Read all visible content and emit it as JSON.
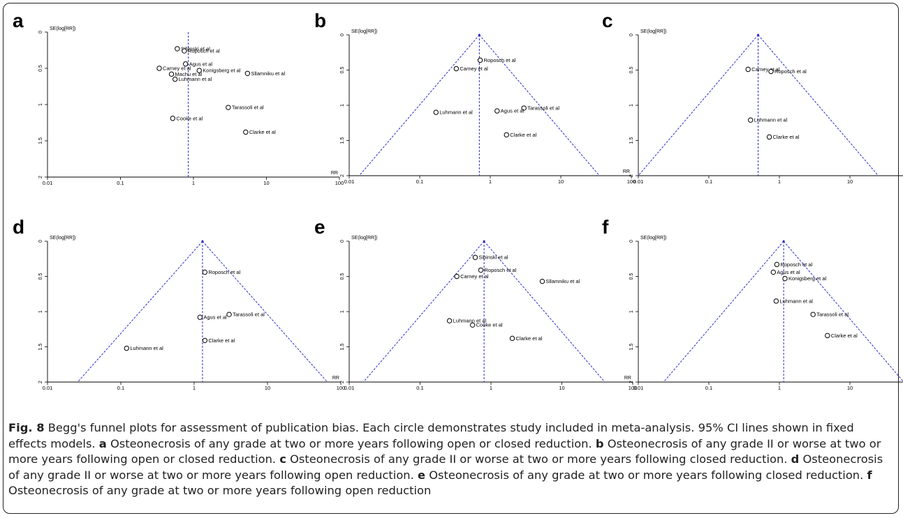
{
  "figure": {
    "caption": {
      "figure_label": "Fig. 8",
      "intro": " Begg's funnel plots for assessment of publication bias. Each circle demonstrates study included in meta-analysis. 95% CI lines shown in fixed effects models. ",
      "parts": [
        {
          "letter": "a",
          "text": " Osteonecrosis of any grade at two or more years following open or closed reduction. "
        },
        {
          "letter": "b",
          "text": " Osteonecrosis of any grade II or worse at two or more years following open or closed reduction. "
        },
        {
          "letter": "c",
          "text": " Osteonecrosis of any grade II or worse at two or more years following closed reduction. "
        },
        {
          "letter": "d",
          "text": " Osteonecrosis of any grade II or worse at two or more years following open reduction. "
        },
        {
          "letter": "e",
          "text": " Osteonecrosis of any grade at two or more years following closed reduction. "
        },
        {
          "letter": "f",
          "text": " Osteonecrosis of any grade at two or more years following open reduction"
        }
      ]
    }
  },
  "chart_data": [
    {
      "panel": "a",
      "type": "scatter",
      "xscale": "log",
      "xlabel": "RR",
      "ylabel": "SE(log[RR])",
      "xlim": [
        0.01,
        100
      ],
      "ylim": [
        0,
        2
      ],
      "y_inverted": true,
      "xticks": [
        "0.01",
        "0.1",
        "1",
        "10",
        "100"
      ],
      "yticks": [
        "0",
        "0.5",
        "1",
        "1.5",
        "2"
      ],
      "pooled_rr": 0.85,
      "funnel": false,
      "points": [
        {
          "label": "Sibinski et al",
          "rr": 0.6,
          "se": 0.23
        },
        {
          "label": "Roposch et al",
          "rr": 0.75,
          "se": 0.26
        },
        {
          "label": "Agus et al",
          "rr": 0.78,
          "se": 0.44
        },
        {
          "label": "Carney et al",
          "rr": 0.34,
          "se": 0.5
        },
        {
          "label": "Konigsberg et al",
          "rr": 1.2,
          "se": 0.53
        },
        {
          "label": "Sllamniku et al",
          "rr": 5.5,
          "se": 0.57
        },
        {
          "label": "Machu et al",
          "rr": 0.5,
          "se": 0.58
        },
        {
          "label": "Luhmann et al",
          "rr": 0.56,
          "se": 0.65
        },
        {
          "label": "Tarassoli et al",
          "rr": 3.0,
          "se": 1.04
        },
        {
          "label": "Cooke et al",
          "rr": 0.52,
          "se": 1.19
        },
        {
          "label": "Clarke et al",
          "rr": 5.2,
          "se": 1.38
        }
      ]
    },
    {
      "panel": "b",
      "type": "scatter",
      "xscale": "log",
      "xlabel": "RR",
      "ylabel": "SE(log[RR])",
      "xlim": [
        0.01,
        100
      ],
      "ylim": [
        0,
        2
      ],
      "y_inverted": true,
      "xticks": [
        "0.01",
        "0.1",
        "1",
        "10",
        "100"
      ],
      "yticks": [
        "0",
        "0.5",
        "1",
        "1.5",
        "2"
      ],
      "pooled_rr": 0.7,
      "funnel": true,
      "points": [
        {
          "label": "Roposch et al",
          "rr": 0.72,
          "se": 0.36
        },
        {
          "label": "Carney et al",
          "rr": 0.33,
          "se": 0.48
        },
        {
          "label": "Tarassoli et al",
          "rr": 3.0,
          "se": 1.04
        },
        {
          "label": "Agus et al",
          "rr": 1.25,
          "se": 1.08
        },
        {
          "label": "Luhmann et al",
          "rr": 0.17,
          "se": 1.1
        },
        {
          "label": "Clarke et al",
          "rr": 1.7,
          "se": 1.42
        }
      ]
    },
    {
      "panel": "c",
      "type": "scatter",
      "xscale": "log",
      "xlabel": "RR",
      "ylabel": "SE(log[RR])",
      "xlim": [
        0.01,
        100
      ],
      "ylim": [
        0,
        2
      ],
      "y_inverted": true,
      "xticks": [
        "0.01",
        "0.1",
        "1",
        "10",
        "100"
      ],
      "yticks": [
        "0",
        "0.5",
        "1",
        "1.5",
        "2"
      ],
      "pooled_rr": 0.5,
      "funnel": true,
      "points": [
        {
          "label": "Carney et al",
          "rr": 0.36,
          "se": 0.49
        },
        {
          "label": "Roposch et al",
          "rr": 0.76,
          "se": 0.52
        },
        {
          "label": "Luhmann et al",
          "rr": 0.39,
          "se": 1.21
        },
        {
          "label": "Clarke et al",
          "rr": 0.72,
          "se": 1.45
        }
      ]
    },
    {
      "panel": "d",
      "type": "scatter",
      "xscale": "log",
      "xlabel": "RR",
      "ylabel": "SE(log[RR])",
      "xlim": [
        0.01,
        100
      ],
      "ylim": [
        0,
        2
      ],
      "y_inverted": true,
      "xticks": [
        "0.01",
        "0.1",
        "1",
        "10",
        "100"
      ],
      "yticks": [
        "0",
        "0.5",
        "1",
        "1.5",
        "2"
      ],
      "pooled_rr": 1.3,
      "funnel": true,
      "points": [
        {
          "label": "Roposch et al",
          "rr": 1.4,
          "se": 0.44
        },
        {
          "label": "Tarassoli et al",
          "rr": 3.0,
          "se": 1.04
        },
        {
          "label": "Agus et al",
          "rr": 1.2,
          "se": 1.08
        },
        {
          "label": "Clarke et al",
          "rr": 1.4,
          "se": 1.41
        },
        {
          "label": "Luhmann et al",
          "rr": 0.12,
          "se": 1.52
        }
      ]
    },
    {
      "panel": "e",
      "type": "scatter",
      "xscale": "log",
      "xlabel": "RR",
      "ylabel": "SE(log[RR])",
      "xlim": [
        0.01,
        100
      ],
      "ylim": [
        0,
        2
      ],
      "y_inverted": true,
      "xticks": [
        "0.01",
        "0.1",
        "1",
        "10",
        "100"
      ],
      "yticks": [
        "0",
        "0.5",
        "1",
        "1.5",
        "2"
      ],
      "pooled_rr": 0.8,
      "funnel": true,
      "points": [
        {
          "label": "Sibinski et al",
          "rr": 0.6,
          "se": 0.23
        },
        {
          "label": "Roposch et al",
          "rr": 0.72,
          "se": 0.41
        },
        {
          "label": "Carney et al",
          "rr": 0.33,
          "se": 0.5
        },
        {
          "label": "Sllamniku et al",
          "rr": 5.3,
          "se": 0.57
        },
        {
          "label": "Luhmann et al",
          "rr": 0.26,
          "se": 1.13
        },
        {
          "label": "Cooke et al",
          "rr": 0.55,
          "se": 1.19
        },
        {
          "label": "Clarke et al",
          "rr": 2.0,
          "se": 1.38
        }
      ]
    },
    {
      "panel": "f",
      "type": "scatter",
      "xscale": "log",
      "xlabel": "RR",
      "ylabel": "SE(log[RR])",
      "xlim": [
        0.01,
        100
      ],
      "ylim": [
        0,
        2
      ],
      "y_inverted": true,
      "xticks": [
        "0.01",
        "0.1",
        "1",
        "10",
        "100"
      ],
      "yticks": [
        "0",
        "0.5",
        "1",
        "1.5",
        "2"
      ],
      "pooled_rr": 1.15,
      "funnel": true,
      "points": [
        {
          "label": "Roposch et al",
          "rr": 0.92,
          "se": 0.33
        },
        {
          "label": "Agus et al",
          "rr": 0.82,
          "se": 0.44
        },
        {
          "label": "Konigsberg et al",
          "rr": 1.2,
          "se": 0.53
        },
        {
          "label": "Luhmann et al",
          "rr": 0.9,
          "se": 0.85
        },
        {
          "label": "Tarassoli et al",
          "rr": 3.0,
          "se": 1.04
        },
        {
          "label": "Clarke et al",
          "rr": 4.8,
          "se": 1.34
        }
      ]
    }
  ]
}
